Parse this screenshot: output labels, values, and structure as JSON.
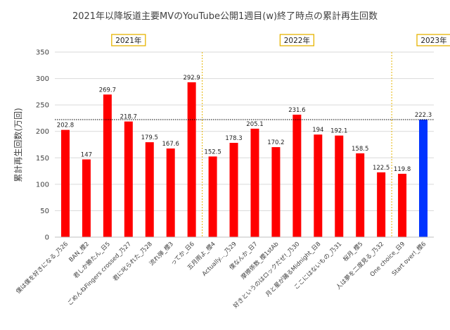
{
  "chart_data": {
    "type": "bar",
    "title": "2021年以降坂道主要MVのYouTube公開1週目(w)終了時点の累計再生回数",
    "ylabel": "累計再生回数(万回)",
    "xlabel": "",
    "ylim": [
      0,
      350
    ],
    "yticks": [
      0,
      50,
      100,
      150,
      200,
      250,
      300,
      350
    ],
    "grid": true,
    "reference_line": 222.3,
    "year_groups": [
      {
        "label": "2021年",
        "start": 0,
        "end": 6
      },
      {
        "label": "2022年",
        "start": 7,
        "end": 15
      },
      {
        "label": "2023年",
        "start": 16,
        "end": 19
      }
    ],
    "categories": [
      "僕は僕を好きになる_乃26",
      "BAN_櫻2",
      "君しか勝たん_日5",
      "ごめんねFingers crossed_乃27",
      "君に叱られた_乃28",
      "流れ弾_櫻3",
      "ってか_日6",
      "五月雨よ_櫻4",
      "Actually..._乃29",
      "僕なんか_日7",
      "摩擦係数_櫻1stAb",
      "好きというのはロックだぜ!_乃30",
      "月と星が踊るMidnight_日8",
      "ここにはないもの_乃31",
      "桜月_櫻5",
      "人は夢を二度見る_乃32",
      "One choice_日9",
      "Start over!_櫻6"
    ],
    "values": [
      202.8,
      147,
      269.7,
      218.7,
      179.5,
      167.6,
      292.9,
      152.5,
      178.3,
      205.1,
      170.2,
      231.6,
      194,
      192.1,
      158.5,
      122.5,
      119.8,
      222.3
    ],
    "colors": [
      "#ff0000",
      "#ff0000",
      "#ff0000",
      "#ff0000",
      "#ff0000",
      "#ff0000",
      "#ff0000",
      "#ff0000",
      "#ff0000",
      "#ff0000",
      "#ff0000",
      "#ff0000",
      "#ff0000",
      "#ff0000",
      "#ff0000",
      "#ff0000",
      "#ff0000",
      "#0033ff"
    ],
    "year_separator_color": "#e6b400"
  }
}
